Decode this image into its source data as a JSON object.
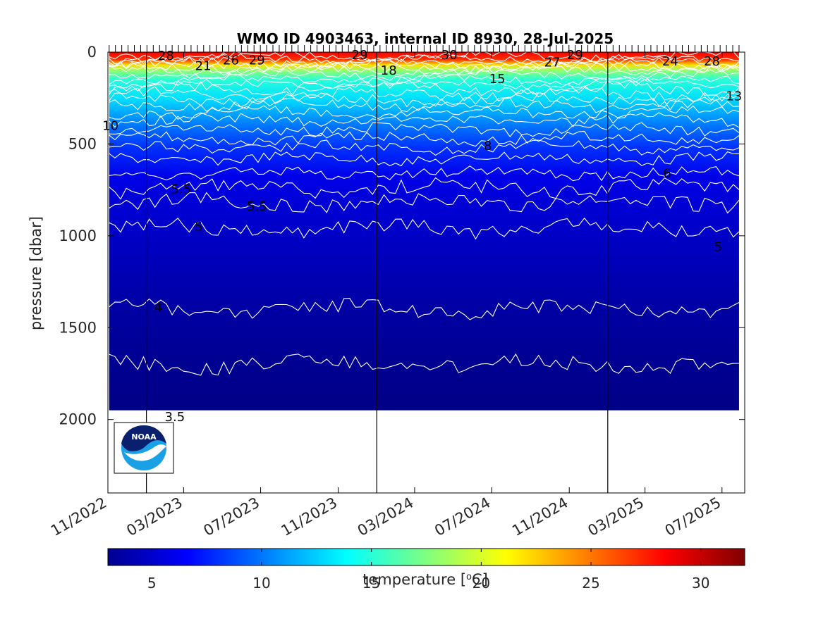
{
  "chart_data": {
    "type": "heatmap",
    "title": "WMO ID 4903463, internal ID 8930, 28-Jul-2025",
    "xlabel": "",
    "ylabel": "pressure [dbar]",
    "x_axis": {
      "type": "date",
      "range": [
        "2022-11-01",
        "2025-08-06"
      ],
      "tick_labels": [
        "11/2022",
        "03/2023",
        "07/2023",
        "11/2023",
        "03/2024",
        "07/2024",
        "11/2024",
        "03/2025",
        "07/2025"
      ],
      "tick_dates": [
        "2022-11-01",
        "2023-03-01",
        "2023-07-01",
        "2023-11-01",
        "2024-03-01",
        "2024-07-01",
        "2024-11-01",
        "2025-03-01",
        "2025-07-01"
      ]
    },
    "y_axis": {
      "reversed": true,
      "range": [
        0,
        2400
      ],
      "tick_values": [
        0,
        500,
        1000,
        1500,
        2000
      ],
      "tick_labels": [
        "0",
        "500",
        "1000",
        "1500",
        "2000"
      ]
    },
    "profile_start": "2022-11-03",
    "profile_end": "2025-07-28",
    "profile_max_pressure": 1950,
    "year_lines": [
      "2023-01-01",
      "2024-01-01",
      "2025-01-01"
    ],
    "temperature_profile": [
      {
        "p": 0,
        "t": 28.5
      },
      {
        "p": 40,
        "t": 27.0
      },
      {
        "p": 70,
        "t": 22.0
      },
      {
        "p": 100,
        "t": 18.0
      },
      {
        "p": 150,
        "t": 15.0
      },
      {
        "p": 250,
        "t": 13.0
      },
      {
        "p": 400,
        "t": 10.0
      },
      {
        "p": 520,
        "t": 8.0
      },
      {
        "p": 680,
        "t": 6.0
      },
      {
        "p": 800,
        "t": 5.5
      },
      {
        "p": 1000,
        "t": 5.0
      },
      {
        "p": 1400,
        "t": 4.0
      },
      {
        "p": 1700,
        "t": 3.5
      },
      {
        "p": 1950,
        "t": 3.2
      }
    ],
    "contour_labels": [
      {
        "text": "28",
        "date": "2023-02-01",
        "p": 20
      },
      {
        "text": "21",
        "date": "2023-04-01",
        "p": 75
      },
      {
        "text": "26",
        "date": "2023-05-15",
        "p": 45
      },
      {
        "text": "29",
        "date": "2023-06-25",
        "p": 45
      },
      {
        "text": "29",
        "date": "2023-12-05",
        "p": 15
      },
      {
        "text": "18",
        "date": "2024-01-20",
        "p": 100
      },
      {
        "text": "30",
        "date": "2024-04-25",
        "p": 15
      },
      {
        "text": "15",
        "date": "2024-07-10",
        "p": 145
      },
      {
        "text": "27",
        "date": "2024-10-05",
        "p": 55
      },
      {
        "text": "29",
        "date": "2024-11-10",
        "p": 15
      },
      {
        "text": "24",
        "date": "2025-04-10",
        "p": 50
      },
      {
        "text": "28",
        "date": "2025-06-15",
        "p": 50
      },
      {
        "text": "13",
        "date": "2025-07-20",
        "p": 240
      },
      {
        "text": "10",
        "date": "2022-11-05",
        "p": 400
      },
      {
        "text": "8",
        "date": "2024-06-25",
        "p": 510
      },
      {
        "text": "6",
        "date": "2025-04-05",
        "p": 660
      },
      {
        "text": "5.5",
        "date": "2023-02-25",
        "p": 745
      },
      {
        "text": "5.5",
        "date": "2023-06-25",
        "p": 840
      },
      {
        "text": "5",
        "date": "2023-03-25",
        "p": 950
      },
      {
        "text": "5",
        "date": "2025-06-25",
        "p": 1060
      },
      {
        "text": "4",
        "date": "2023-01-20",
        "p": 1390
      },
      {
        "text": "3.5",
        "date": "2023-02-15",
        "p": 1985
      }
    ],
    "colorbar": {
      "label": "temperature [",
      "label_unit": "C]",
      "label_degree": "o",
      "range": [
        3,
        32
      ],
      "tick_values": [
        5,
        10,
        15,
        20,
        25,
        30
      ],
      "tick_labels": [
        "5",
        "10",
        "15",
        "20",
        "25",
        "30"
      ],
      "colormap": "jet"
    },
    "logo_text": "NOAA"
  }
}
